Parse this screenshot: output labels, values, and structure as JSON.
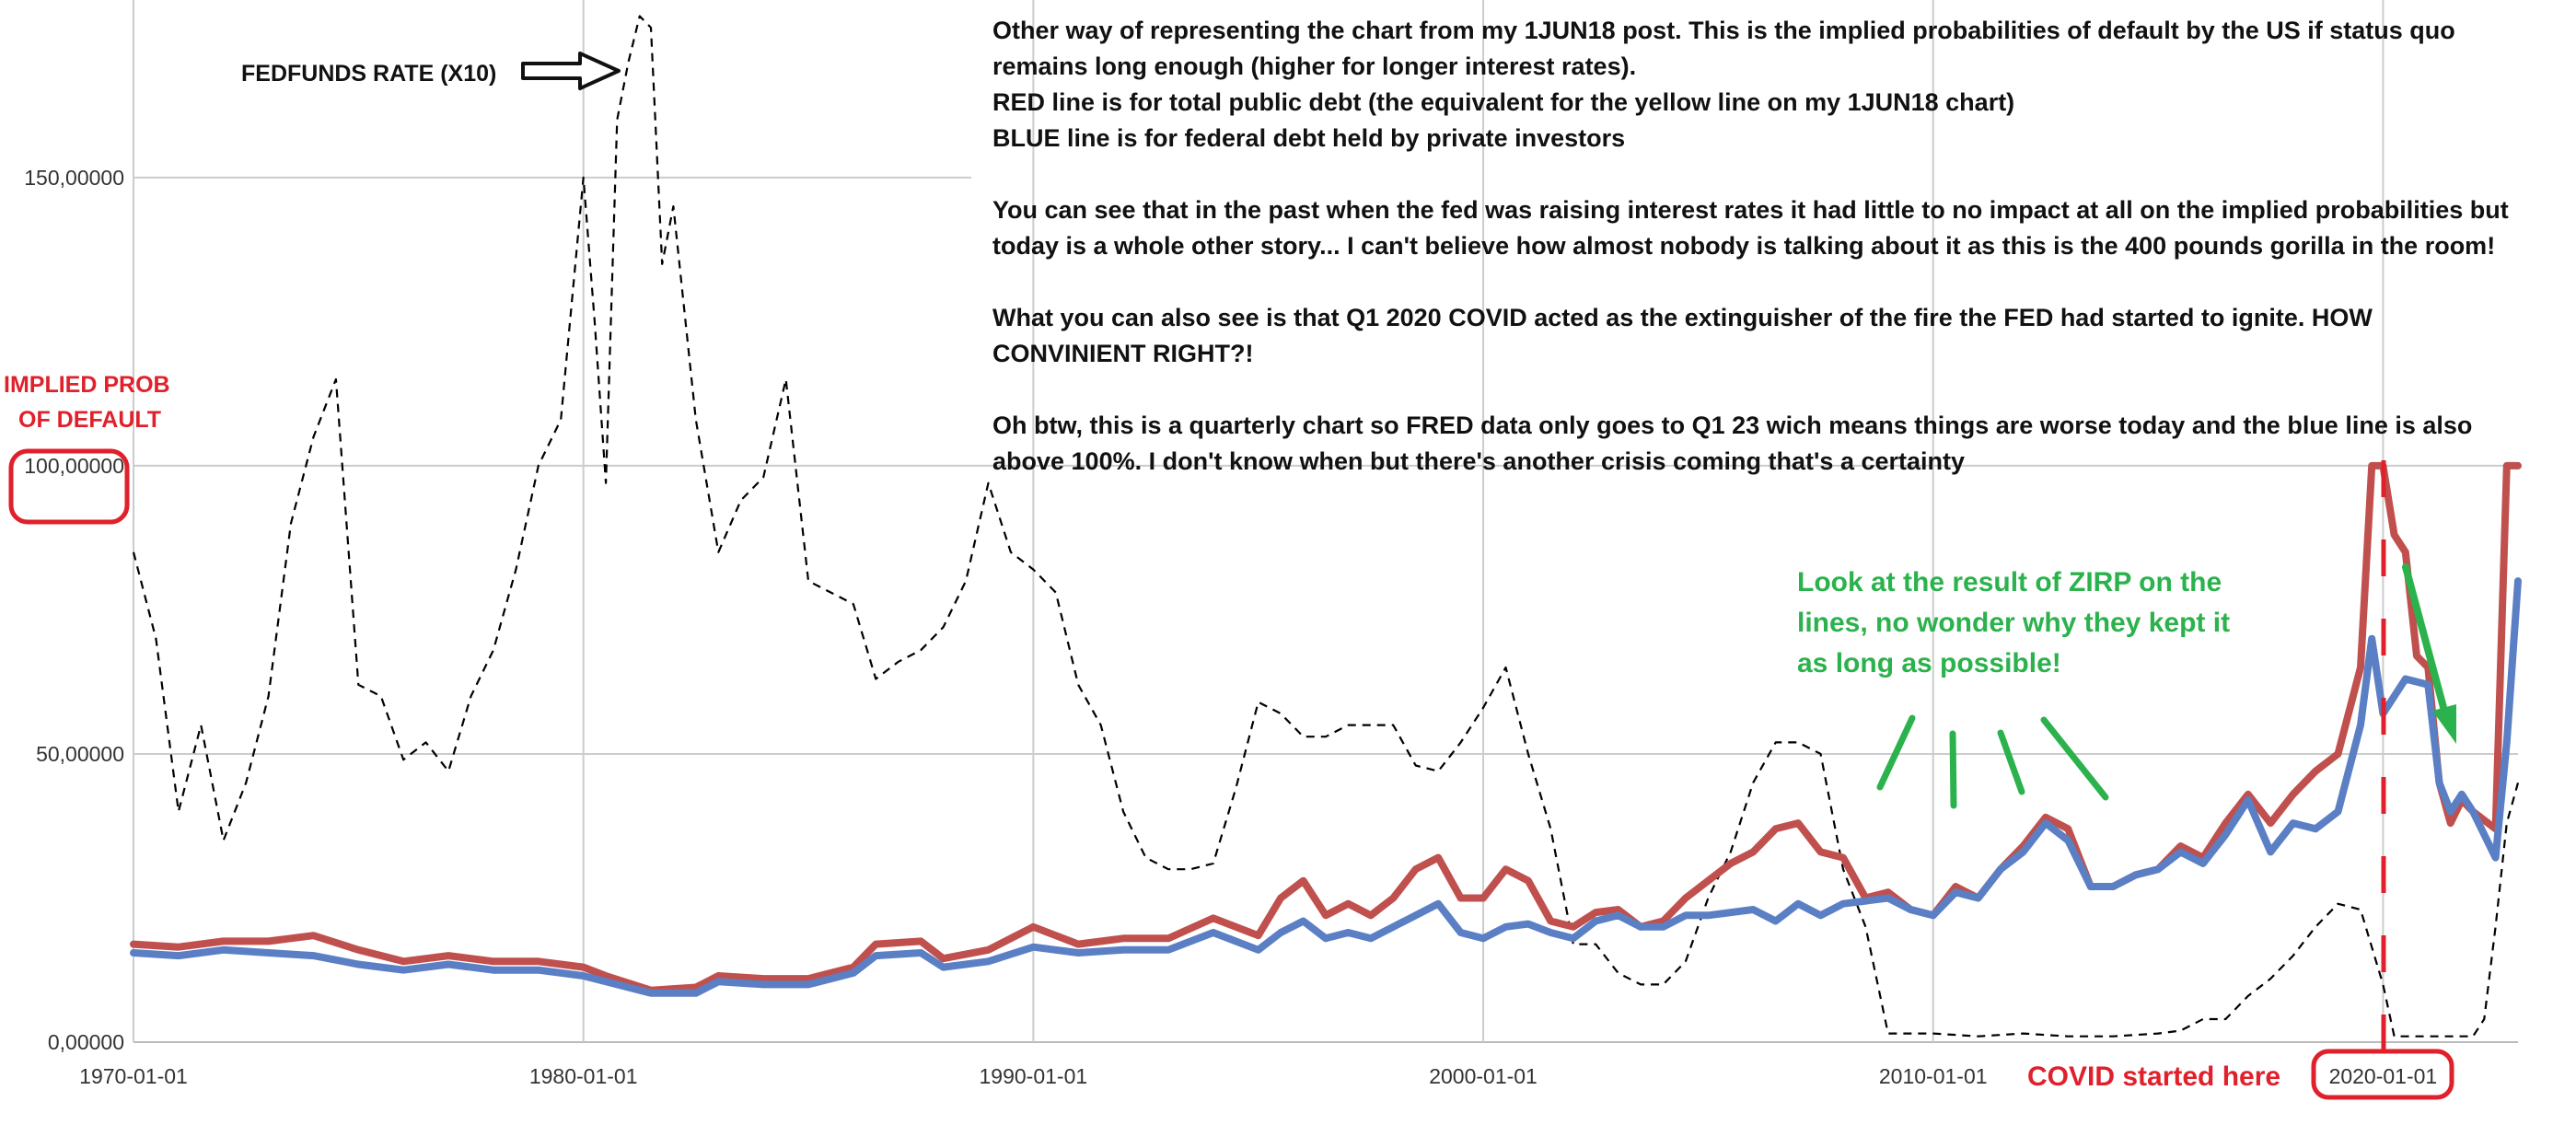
{
  "chart_data": {
    "type": "line",
    "x_ticks": [
      "1970-01-01",
      "1980-01-01",
      "1990-01-01",
      "2000-01-01",
      "2010-01-01",
      "2020-01-01"
    ],
    "y_ticks": [
      "0,00000",
      "50,00000",
      "100,00000",
      "150,00000"
    ],
    "ylim": [
      0,
      180
    ],
    "grid": true,
    "series": [
      {
        "name": "FEDFUNDS RATE (X10)",
        "color": "#000000",
        "dash": true,
        "points": [
          [
            1970.0,
            85
          ],
          [
            1970.5,
            70
          ],
          [
            1971.0,
            40
          ],
          [
            1971.5,
            55
          ],
          [
            1972.0,
            35
          ],
          [
            1972.5,
            45
          ],
          [
            1973.0,
            60
          ],
          [
            1973.5,
            90
          ],
          [
            1974.0,
            105
          ],
          [
            1974.5,
            115
          ],
          [
            1975.0,
            62
          ],
          [
            1975.5,
            60
          ],
          [
            1976.0,
            49
          ],
          [
            1976.5,
            52
          ],
          [
            1977.0,
            47
          ],
          [
            1977.5,
            60
          ],
          [
            1978.0,
            68
          ],
          [
            1978.5,
            82
          ],
          [
            1979.0,
            100
          ],
          [
            1979.5,
            108
          ],
          [
            1980.0,
            150
          ],
          [
            1980.25,
            125
          ],
          [
            1980.5,
            97
          ],
          [
            1980.75,
            160
          ],
          [
            1981.0,
            170
          ],
          [
            1981.25,
            178
          ],
          [
            1981.5,
            176
          ],
          [
            1981.75,
            135
          ],
          [
            1982.0,
            145
          ],
          [
            1982.5,
            108
          ],
          [
            1983.0,
            85
          ],
          [
            1983.5,
            94
          ],
          [
            1984.0,
            98
          ],
          [
            1984.5,
            115
          ],
          [
            1985.0,
            80
          ],
          [
            1985.5,
            78
          ],
          [
            1986.0,
            76
          ],
          [
            1986.5,
            63
          ],
          [
            1987.0,
            66
          ],
          [
            1987.5,
            68
          ],
          [
            1988.0,
            72
          ],
          [
            1988.5,
            80
          ],
          [
            1989.0,
            97
          ],
          [
            1989.5,
            85
          ],
          [
            1990.0,
            82
          ],
          [
            1990.5,
            78
          ],
          [
            1991.0,
            62
          ],
          [
            1991.5,
            55
          ],
          [
            1992.0,
            40
          ],
          [
            1992.5,
            32
          ],
          [
            1993.0,
            30
          ],
          [
            1993.5,
            30
          ],
          [
            1994.0,
            31
          ],
          [
            1994.5,
            44
          ],
          [
            1995.0,
            59
          ],
          [
            1995.5,
            57
          ],
          [
            1996.0,
            53
          ],
          [
            1996.5,
            53
          ],
          [
            1997.0,
            55
          ],
          [
            1997.5,
            55
          ],
          [
            1998.0,
            55
          ],
          [
            1998.5,
            48
          ],
          [
            1999.0,
            47
          ],
          [
            1999.5,
            52
          ],
          [
            2000.0,
            58
          ],
          [
            2000.5,
            65
          ],
          [
            2001.0,
            50
          ],
          [
            2001.5,
            37
          ],
          [
            2002.0,
            17
          ],
          [
            2002.5,
            17
          ],
          [
            2003.0,
            12
          ],
          [
            2003.5,
            10
          ],
          [
            2004.0,
            10
          ],
          [
            2004.5,
            14
          ],
          [
            2005.0,
            25
          ],
          [
            2005.5,
            33
          ],
          [
            2006.0,
            45
          ],
          [
            2006.5,
            52
          ],
          [
            2007.0,
            52
          ],
          [
            2007.5,
            50
          ],
          [
            2008.0,
            30
          ],
          [
            2008.5,
            20
          ],
          [
            2009.0,
            1.5
          ],
          [
            2010.0,
            1.5
          ],
          [
            2011.0,
            1
          ],
          [
            2012.0,
            1.5
          ],
          [
            2013.0,
            1
          ],
          [
            2014.0,
            1
          ],
          [
            2015.0,
            1.5
          ],
          [
            2015.5,
            2
          ],
          [
            2016.0,
            4
          ],
          [
            2016.5,
            4
          ],
          [
            2017.0,
            8
          ],
          [
            2017.5,
            11
          ],
          [
            2018.0,
            15
          ],
          [
            2018.5,
            20
          ],
          [
            2019.0,
            24
          ],
          [
            2019.5,
            23
          ],
          [
            2020.0,
            10
          ],
          [
            2020.25,
            1
          ],
          [
            2021.0,
            1
          ],
          [
            2022.0,
            1
          ],
          [
            2022.25,
            4
          ],
          [
            2022.5,
            20
          ],
          [
            2022.75,
            38
          ],
          [
            2023.0,
            45
          ]
        ]
      },
      {
        "name": "RED line",
        "color": "#c0504d",
        "dash": false,
        "points": [
          [
            1970.0,
            17
          ],
          [
            1971.0,
            16.5
          ],
          [
            1972.0,
            17.5
          ],
          [
            1973.0,
            17.5
          ],
          [
            1974.0,
            18.5
          ],
          [
            1975.0,
            16
          ],
          [
            1976.0,
            14
          ],
          [
            1977.0,
            15
          ],
          [
            1978.0,
            14
          ],
          [
            1979.0,
            14
          ],
          [
            1980.0,
            13
          ],
          [
            1980.5,
            11.5
          ],
          [
            1981.5,
            9
          ],
          [
            1982.5,
            9.5
          ],
          [
            1983.0,
            11.5
          ],
          [
            1984.0,
            11
          ],
          [
            1985.0,
            11
          ],
          [
            1986.0,
            13
          ],
          [
            1986.5,
            17
          ],
          [
            1987.5,
            17.5
          ],
          [
            1988.0,
            14.5
          ],
          [
            1989.0,
            16
          ],
          [
            1990.0,
            20
          ],
          [
            1991.0,
            17
          ],
          [
            1992.0,
            18
          ],
          [
            1993.0,
            18
          ],
          [
            1994.0,
            21.5
          ],
          [
            1995.0,
            18.5
          ],
          [
            1995.5,
            25
          ],
          [
            1996.0,
            28
          ],
          [
            1996.5,
            22
          ],
          [
            1997.0,
            24
          ],
          [
            1997.5,
            22
          ],
          [
            1998.0,
            25
          ],
          [
            1998.5,
            30
          ],
          [
            1999.0,
            32
          ],
          [
            1999.5,
            25
          ],
          [
            2000.0,
            25
          ],
          [
            2000.5,
            30
          ],
          [
            2001.0,
            28
          ],
          [
            2001.5,
            21
          ],
          [
            2002.0,
            20
          ],
          [
            2002.5,
            22.5
          ],
          [
            2003.0,
            23
          ],
          [
            2003.5,
            20
          ],
          [
            2004.0,
            21
          ],
          [
            2004.5,
            25
          ],
          [
            2005.0,
            28
          ],
          [
            2005.5,
            31
          ],
          [
            2006.0,
            33
          ],
          [
            2006.5,
            37
          ],
          [
            2007.0,
            38
          ],
          [
            2007.5,
            33
          ],
          [
            2008.0,
            32
          ],
          [
            2008.5,
            25
          ],
          [
            2009.0,
            26
          ],
          [
            2009.5,
            23
          ],
          [
            2010.0,
            22
          ],
          [
            2010.5,
            27
          ],
          [
            2011.0,
            25
          ],
          [
            2011.5,
            30
          ],
          [
            2012.0,
            34
          ],
          [
            2012.5,
            39
          ],
          [
            2013.0,
            37
          ],
          [
            2013.5,
            27
          ],
          [
            2014.0,
            27
          ],
          [
            2014.5,
            29
          ],
          [
            2015.0,
            30
          ],
          [
            2015.5,
            34
          ],
          [
            2016.0,
            32
          ],
          [
            2016.5,
            38
          ],
          [
            2017.0,
            43
          ],
          [
            2017.5,
            38
          ],
          [
            2018.0,
            43
          ],
          [
            2018.5,
            47
          ],
          [
            2019.0,
            50
          ],
          [
            2019.5,
            65
          ],
          [
            2019.75,
            100
          ],
          [
            2020.0,
            100
          ],
          [
            2020.25,
            88
          ],
          [
            2020.5,
            85
          ],
          [
            2020.75,
            67
          ],
          [
            2021.0,
            65
          ],
          [
            2021.25,
            45
          ],
          [
            2021.5,
            38
          ],
          [
            2021.75,
            42
          ],
          [
            2022.0,
            40
          ],
          [
            2022.5,
            37
          ],
          [
            2022.75,
            100
          ],
          [
            2023.0,
            100
          ]
        ]
      },
      {
        "name": "BLUE line",
        "color": "#5b7fc4",
        "dash": false,
        "points": [
          [
            1970.0,
            15.5
          ],
          [
            1971.0,
            15
          ],
          [
            1972.0,
            16
          ],
          [
            1973.0,
            15.5
          ],
          [
            1974.0,
            15
          ],
          [
            1975.0,
            13.5
          ],
          [
            1976.0,
            12.5
          ],
          [
            1977.0,
            13.5
          ],
          [
            1978.0,
            12.5
          ],
          [
            1979.0,
            12.5
          ],
          [
            1980.0,
            11.5
          ],
          [
            1980.5,
            10.5
          ],
          [
            1981.5,
            8.5
          ],
          [
            1982.5,
            8.5
          ],
          [
            1983.0,
            10.5
          ],
          [
            1984.0,
            10
          ],
          [
            1985.0,
            10
          ],
          [
            1986.0,
            12
          ],
          [
            1986.5,
            15
          ],
          [
            1987.5,
            15.5
          ],
          [
            1988.0,
            13
          ],
          [
            1989.0,
            14
          ],
          [
            1990.0,
            16.5
          ],
          [
            1991.0,
            15.5
          ],
          [
            1992.0,
            16
          ],
          [
            1993.0,
            16
          ],
          [
            1994.0,
            19
          ],
          [
            1995.0,
            16
          ],
          [
            1995.5,
            19
          ],
          [
            1996.0,
            21
          ],
          [
            1996.5,
            18
          ],
          [
            1997.0,
            19
          ],
          [
            1997.5,
            18
          ],
          [
            1998.0,
            20
          ],
          [
            1998.5,
            22
          ],
          [
            1999.0,
            24
          ],
          [
            1999.5,
            19
          ],
          [
            2000.0,
            18
          ],
          [
            2000.5,
            20
          ],
          [
            2001.0,
            20.5
          ],
          [
            2001.5,
            19
          ],
          [
            2002.0,
            18
          ],
          [
            2002.5,
            21
          ],
          [
            2003.0,
            22
          ],
          [
            2003.5,
            20
          ],
          [
            2004.0,
            20
          ],
          [
            2004.5,
            22
          ],
          [
            2005.0,
            22
          ],
          [
            2006.0,
            23
          ],
          [
            2006.5,
            21
          ],
          [
            2007.0,
            24
          ],
          [
            2007.5,
            22
          ],
          [
            2008.0,
            24
          ],
          [
            2008.5,
            24.5
          ],
          [
            2009.0,
            25
          ],
          [
            2009.5,
            23
          ],
          [
            2010.0,
            22
          ],
          [
            2010.5,
            26
          ],
          [
            2011.0,
            25
          ],
          [
            2011.5,
            30
          ],
          [
            2012.0,
            33
          ],
          [
            2012.5,
            38
          ],
          [
            2013.0,
            35
          ],
          [
            2013.5,
            27
          ],
          [
            2014.0,
            27
          ],
          [
            2014.5,
            29
          ],
          [
            2015.0,
            30
          ],
          [
            2015.5,
            33
          ],
          [
            2016.0,
            31
          ],
          [
            2016.5,
            36
          ],
          [
            2017.0,
            42
          ],
          [
            2017.5,
            33
          ],
          [
            2018.0,
            38
          ],
          [
            2018.5,
            37
          ],
          [
            2019.0,
            40
          ],
          [
            2019.5,
            55
          ],
          [
            2019.75,
            70
          ],
          [
            2020.0,
            57
          ],
          [
            2020.5,
            63
          ],
          [
            2021.0,
            62
          ],
          [
            2021.25,
            45
          ],
          [
            2021.5,
            40
          ],
          [
            2021.75,
            43
          ],
          [
            2022.0,
            40
          ],
          [
            2022.5,
            32
          ],
          [
            2022.75,
            52
          ],
          [
            2023.0,
            80
          ]
        ]
      }
    ]
  },
  "annotations": {
    "fedfunds_label": "FEDFUNDS RATE (X10)",
    "implied_prob_line1": "IMPLIED PROB",
    "implied_prob_line2": "OF DEFAULT",
    "covid_label": "COVID started here",
    "zirp_line1": "Look at the result of ZIRP on the",
    "zirp_line2": "lines, no wonder why they kept it",
    "zirp_line3": "as long as possible!",
    "commentary": {
      "p1_line1": "Other way of representing the chart from my 1JUN18 post. This is the implied probabilities of default by the US if status quo",
      "p1_line2": "remains long enough (higher for longer interest rates).",
      "p1_line3": "RED line is for total public debt (the equivalent for the yellow line on my 1JUN18 chart)",
      "p1_line4": "BLUE line is for federal debt held by private investors",
      "p2_line1": "You can see that in the past when the fed was raising interest rates it had little to no impact at all on the implied probabilities but",
      "p2_line2": "today is a whole other story... I can't believe how almost nobody is talking about it as this is the 400 pounds gorilla in the room!",
      "p3_line1": "What you can also see is that Q1 2020 COVID acted as the extinguisher of the fire the FED had started to ignite. HOW",
      "p3_line2": "CONVINIENT RIGHT?!",
      "p4_line1": "Oh btw, this is a quarterly chart so FRED data only goes to Q1 23 wich means things are worse today and the blue line is also",
      "p4_line2": "above 100%. I don't know when but there's another crisis coming that's a certainty"
    },
    "colors": {
      "red_note": "#e0202a",
      "green_note": "#2bb24c"
    }
  }
}
